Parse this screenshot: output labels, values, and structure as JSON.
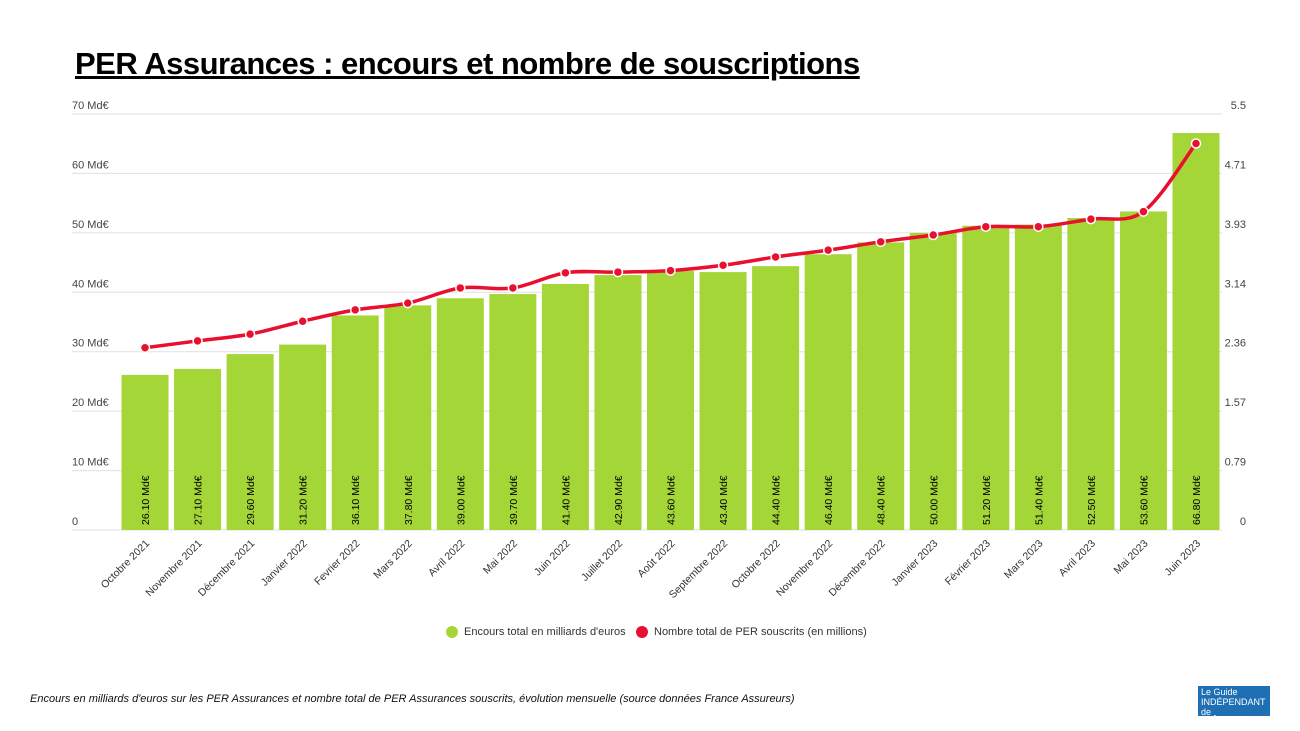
{
  "title": "PER Assurances : encours et nombre de souscriptions",
  "caption": "Encours en milliards d'euros sur les PER Assurances et nombre total de PER Assurances souscrits, évolution mensuelle (source données France Assureurs)",
  "logo_text": "Le Guide Indépendant de l'Épargne",
  "colors": {
    "bar": "#a5d637",
    "line": "#e8102e",
    "grid": "#e0e0e0"
  },
  "chart_data": {
    "type": "bar",
    "categories": [
      "Octobre 2021",
      "Novembre 2021",
      "Décembre 2021",
      "Janvier 2022",
      "Fevrier 2022",
      "Mars 2022",
      "Avril 2022",
      "Mai 2022",
      "Juin 2022",
      "Juillet 2022",
      "Août 2022",
      "Septembre 2022",
      "Octobre 2022",
      "Novembre 2022",
      "Décembre 2022",
      "Janvier 2023",
      "Février 2023",
      "Mars 2023",
      "Avril 2023",
      "Mai 2023",
      "Juin 2023"
    ],
    "series": [
      {
        "name": "Encours total en milliards d'euros",
        "type": "bar",
        "axis": "left",
        "values": [
          26.1,
          27.1,
          29.6,
          31.2,
          36.1,
          37.8,
          39.0,
          39.7,
          41.4,
          42.9,
          43.6,
          43.4,
          44.4,
          46.4,
          48.4,
          50.0,
          51.2,
          51.4,
          52.5,
          53.6,
          66.8
        ],
        "labels": [
          "26.10 Md€",
          "27.10 Md€",
          "29.60 Md€",
          "31.20 Md€",
          "36.10 Md€",
          "37.80 Md€",
          "39.00 Md€",
          "39.70 Md€",
          "41.40 Md€",
          "42.90 Md€",
          "43.60 Md€",
          "43.40 Md€",
          "44.40 Md€",
          "46.40 Md€",
          "48.40 Md€",
          "50.00 Md€",
          "51.20 Md€",
          "51.40 Md€",
          "52.50 Md€",
          "53.60 Md€",
          "66.80 Md€"
        ]
      },
      {
        "name": "Nombre total de PER souscrits (en millions)",
        "type": "line",
        "axis": "right",
        "values": [
          2.41,
          2.5,
          2.59,
          2.76,
          2.91,
          3.0,
          3.2,
          3.2,
          3.4,
          3.41,
          3.43,
          3.5,
          3.61,
          3.7,
          3.81,
          3.9,
          4.01,
          4.01,
          4.11,
          4.21,
          5.11
        ]
      }
    ],
    "y_left": {
      "ylim": [
        0,
        70
      ],
      "ticks": [
        "0",
        "10 Md€",
        "20 Md€",
        "30 Md€",
        "40 Md€",
        "50 Md€",
        "60 Md€",
        "70 Md€"
      ]
    },
    "y_right": {
      "ylim": [
        0,
        5.5
      ],
      "ticks": [
        "0",
        "0.79",
        "1.57",
        "2.36",
        "3.14",
        "3.93",
        "4.71",
        "5.5"
      ]
    },
    "grid": true,
    "legend": "bottom-center"
  }
}
